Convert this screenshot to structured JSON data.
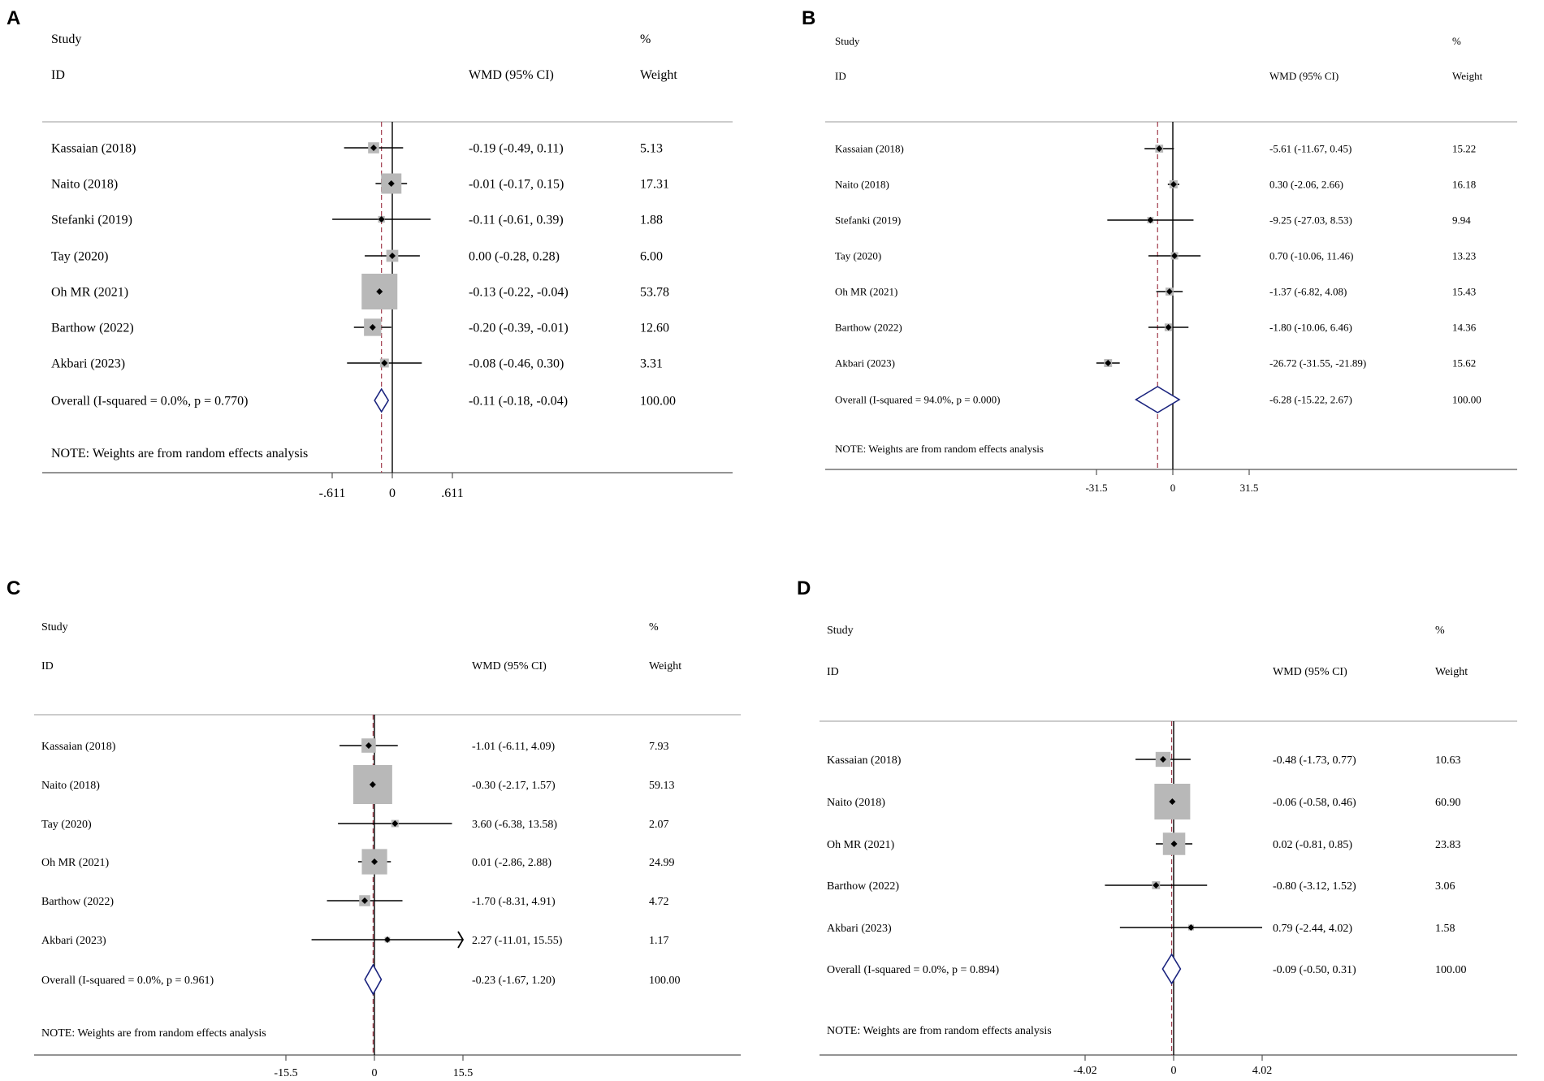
{
  "chart_data": [
    {
      "type": "forest",
      "panel_label": "A",
      "headers": {
        "study": "Study",
        "id": "ID",
        "effect": "WMD (95% CI)",
        "pct": "%",
        "weight": "Weight"
      },
      "axis": {
        "min": -0.611,
        "max": 0.611,
        "ticks": [
          -0.611,
          0,
          0.611
        ],
        "tick_labels": [
          "-.611",
          "0",
          ".611"
        ]
      },
      "studies": [
        {
          "label": "Kassaian (2018)",
          "est": -0.19,
          "lo": -0.49,
          "hi": 0.11,
          "ci_text": "-0.19 (-0.49, 0.11)",
          "weight": 5.13,
          "weight_text": "5.13"
        },
        {
          "label": "Naito (2018)",
          "est": -0.01,
          "lo": -0.17,
          "hi": 0.15,
          "ci_text": "-0.01 (-0.17, 0.15)",
          "weight": 17.31,
          "weight_text": "17.31"
        },
        {
          "label": "Stefanki (2019)",
          "est": -0.11,
          "lo": -0.61,
          "hi": 0.39,
          "ci_text": "-0.11 (-0.61, 0.39)",
          "weight": 1.88,
          "weight_text": "1.88"
        },
        {
          "label": "Tay (2020)",
          "est": 0.0,
          "lo": -0.28,
          "hi": 0.28,
          "ci_text": "0.00 (-0.28, 0.28)",
          "weight": 6.0,
          "weight_text": "6.00"
        },
        {
          "label": "Oh MR (2021)",
          "est": -0.13,
          "lo": -0.22,
          "hi": -0.04,
          "ci_text": "-0.13 (-0.22, -0.04)",
          "weight": 53.78,
          "weight_text": "53.78"
        },
        {
          "label": "Barthow (2022)",
          "est": -0.2,
          "lo": -0.39,
          "hi": -0.01,
          "ci_text": "-0.20 (-0.39, -0.01)",
          "weight": 12.6,
          "weight_text": "12.60"
        },
        {
          "label": "Akbari (2023)",
          "est": -0.08,
          "lo": -0.46,
          "hi": 0.3,
          "ci_text": "-0.08 (-0.46, 0.30)",
          "weight": 3.31,
          "weight_text": "3.31"
        }
      ],
      "overall": {
        "label": "Overall  (I-squared = 0.0%, p = 0.770)",
        "est": -0.11,
        "lo": -0.18,
        "hi": -0.04,
        "ci_text": "-0.11 (-0.18, -0.04)",
        "weight_text": "100.00"
      },
      "note": "NOTE: Weights are from random effects analysis"
    },
    {
      "type": "forest",
      "panel_label": "B",
      "headers": {
        "study": "Study",
        "id": "ID",
        "effect": "WMD (95% CI)",
        "pct": "%",
        "weight": "Weight"
      },
      "axis": {
        "min": -31.5,
        "max": 31.5,
        "ticks": [
          -31.5,
          0,
          31.5
        ],
        "tick_labels": [
          "-31.5",
          "0",
          "31.5"
        ]
      },
      "studies": [
        {
          "label": "Kassaian (2018)",
          "est": -5.61,
          "lo": -11.67,
          "hi": 0.45,
          "ci_text": "-5.61 (-11.67, 0.45)",
          "weight": 15.22,
          "weight_text": "15.22"
        },
        {
          "label": "Naito (2018)",
          "est": 0.3,
          "lo": -2.06,
          "hi": 2.66,
          "ci_text": "0.30 (-2.06, 2.66)",
          "weight": 16.18,
          "weight_text": "16.18"
        },
        {
          "label": "Stefanki (2019)",
          "est": -9.25,
          "lo": -27.03,
          "hi": 8.53,
          "ci_text": "-9.25 (-27.03, 8.53)",
          "weight": 9.94,
          "weight_text": "9.94"
        },
        {
          "label": "Tay (2020)",
          "est": 0.7,
          "lo": -10.06,
          "hi": 11.46,
          "ci_text": "0.70 (-10.06, 11.46)",
          "weight": 13.23,
          "weight_text": "13.23"
        },
        {
          "label": "Oh MR (2021)",
          "est": -1.37,
          "lo": -6.82,
          "hi": 4.08,
          "ci_text": "-1.37 (-6.82, 4.08)",
          "weight": 15.43,
          "weight_text": "15.43"
        },
        {
          "label": "Barthow (2022)",
          "est": -1.8,
          "lo": -10.06,
          "hi": 6.46,
          "ci_text": "-1.80 (-10.06, 6.46)",
          "weight": 14.36,
          "weight_text": "14.36"
        },
        {
          "label": "Akbari (2023)",
          "est": -26.72,
          "lo": -31.55,
          "hi": -21.89,
          "ci_text": "-26.72 (-31.55, -21.89)",
          "weight": 15.62,
          "weight_text": "15.62"
        }
      ],
      "overall": {
        "label": "Overall  (I-squared = 94.0%, p = 0.000)",
        "est": -6.28,
        "lo": -15.22,
        "hi": 2.67,
        "ci_text": "-6.28 (-15.22, 2.67)",
        "weight_text": "100.00"
      },
      "note": "NOTE: Weights are from random effects analysis"
    },
    {
      "type": "forest",
      "panel_label": "C",
      "headers": {
        "study": "Study",
        "id": "ID",
        "effect": "WMD (95% CI)",
        "pct": "%",
        "weight": "Weight"
      },
      "axis": {
        "min": -15.5,
        "max": 15.5,
        "ticks": [
          -15.5,
          0,
          15.5
        ],
        "tick_labels": [
          "-15.5",
          "0",
          "15.5"
        ]
      },
      "studies": [
        {
          "label": "Kassaian (2018)",
          "est": -1.01,
          "lo": -6.11,
          "hi": 4.09,
          "ci_text": "-1.01 (-6.11, 4.09)",
          "weight": 7.93,
          "weight_text": "7.93"
        },
        {
          "label": "Naito (2018)",
          "est": -0.3,
          "lo": -2.17,
          "hi": 1.57,
          "ci_text": "-0.30 (-2.17, 1.57)",
          "weight": 59.13,
          "weight_text": "59.13"
        },
        {
          "label": "Tay (2020)",
          "est": 3.6,
          "lo": -6.38,
          "hi": 13.58,
          "ci_text": "3.60 (-6.38, 13.58)",
          "weight": 2.07,
          "weight_text": "2.07"
        },
        {
          "label": "Oh MR (2021)",
          "est": 0.01,
          "lo": -2.86,
          "hi": 2.88,
          "ci_text": "0.01 (-2.86, 2.88)",
          "weight": 24.99,
          "weight_text": "24.99"
        },
        {
          "label": "Barthow (2022)",
          "est": -1.7,
          "lo": -8.31,
          "hi": 4.91,
          "ci_text": "-1.70 (-8.31, 4.91)",
          "weight": 4.72,
          "weight_text": "4.72"
        },
        {
          "label": "Akbari (2023)",
          "est": 2.27,
          "lo": -11.01,
          "hi": 15.55,
          "ci_text": "2.27 (-11.01, 15.55)",
          "weight": 1.17,
          "weight_text": "1.17"
        }
      ],
      "overall": {
        "label": "Overall  (I-squared = 0.0%, p = 0.961)",
        "est": -0.23,
        "lo": -1.67,
        "hi": 1.2,
        "ci_text": "-0.23 (-1.67, 1.20)",
        "weight_text": "100.00"
      },
      "note": "NOTE: Weights are from random effects analysis"
    },
    {
      "type": "forest",
      "panel_label": "D",
      "headers": {
        "study": "Study",
        "id": "ID",
        "effect": "WMD (95% CI)",
        "pct": "%",
        "weight": "Weight"
      },
      "axis": {
        "min": -4.02,
        "max": 4.02,
        "ticks": [
          -4.02,
          0,
          4.02
        ],
        "tick_labels": [
          "-4.02",
          "0",
          "4.02"
        ]
      },
      "studies": [
        {
          "label": "Kassaian (2018)",
          "est": -0.48,
          "lo": -1.73,
          "hi": 0.77,
          "ci_text": "-0.48 (-1.73, 0.77)",
          "weight": 10.63,
          "weight_text": "10.63"
        },
        {
          "label": "Naito (2018)",
          "est": -0.06,
          "lo": -0.58,
          "hi": 0.46,
          "ci_text": "-0.06 (-0.58, 0.46)",
          "weight": 60.9,
          "weight_text": "60.90"
        },
        {
          "label": "Oh MR (2021)",
          "est": 0.02,
          "lo": -0.81,
          "hi": 0.85,
          "ci_text": "0.02 (-0.81, 0.85)",
          "weight": 23.83,
          "weight_text": "23.83"
        },
        {
          "label": "Barthow (2022)",
          "est": -0.8,
          "lo": -3.12,
          "hi": 1.52,
          "ci_text": "-0.80 (-3.12, 1.52)",
          "weight": 3.06,
          "weight_text": "3.06"
        },
        {
          "label": "Akbari (2023)",
          "est": 0.79,
          "lo": -2.44,
          "hi": 4.02,
          "ci_text": "0.79 (-2.44, 4.02)",
          "weight": 1.58,
          "weight_text": "1.58"
        }
      ],
      "overall": {
        "label": "Overall  (I-squared = 0.0%, p = 0.894)",
        "est": -0.09,
        "lo": -0.5,
        "hi": 0.31,
        "ci_text": "-0.09 (-0.50, 0.31)",
        "weight_text": "100.00"
      },
      "note": "NOTE: Weights are from random effects analysis"
    }
  ],
  "colors": {
    "ci_line": "#000000",
    "study_box": "#b8b8b8",
    "point": "#000000",
    "diamond": "#1a237e",
    "overall_line": "#a03a4a",
    "frame": "#555555",
    "null_line": "#000000"
  }
}
